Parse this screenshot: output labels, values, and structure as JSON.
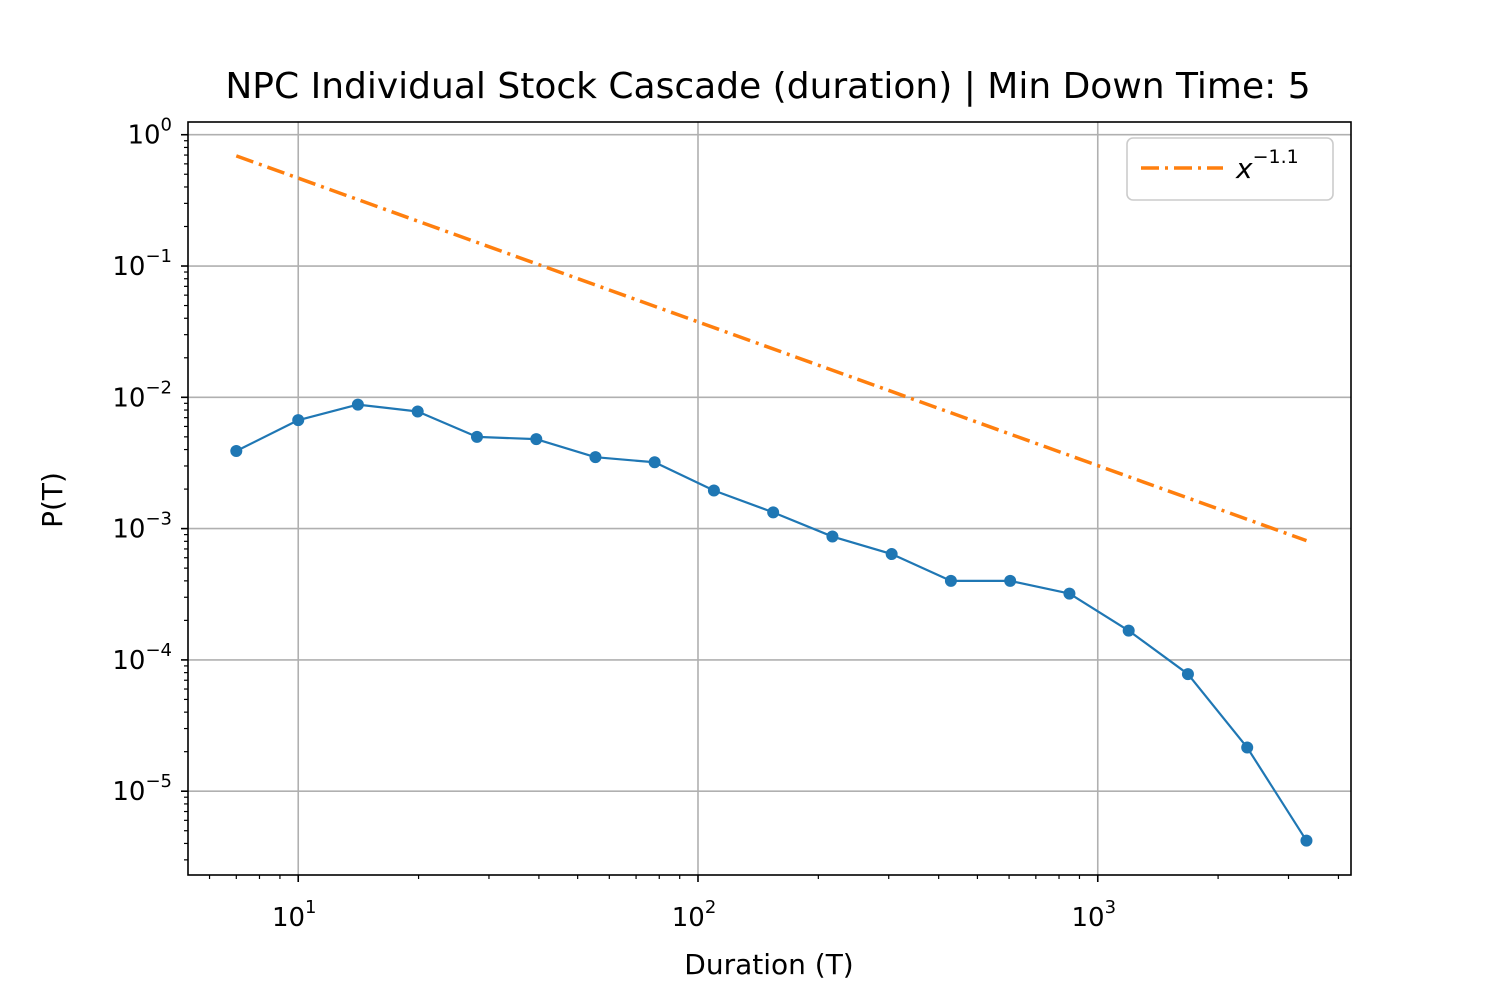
{
  "chart_data": {
    "type": "line",
    "title": "NPC Individual Stock Cascade (duration) | Min Down Time: 5",
    "xlabel": "Duration (T)",
    "ylabel": "P(T)",
    "xscale": "log",
    "yscale": "log",
    "xlim": [
      5.3,
      4300
    ],
    "ylim": [
      2.3e-06,
      1.25
    ],
    "grid": true,
    "x_ticks": [
      {
        "value": 10,
        "base": "10",
        "exp": "1"
      },
      {
        "value": 100,
        "base": "10",
        "exp": "2"
      },
      {
        "value": 1000,
        "base": "10",
        "exp": "3"
      }
    ],
    "y_ticks": [
      {
        "value": 1,
        "base": "10",
        "exp": "0"
      },
      {
        "value": 0.1,
        "base": "10",
        "exp": "−1"
      },
      {
        "value": 0.01,
        "base": "10",
        "exp": "−2"
      },
      {
        "value": 0.001,
        "base": "10",
        "exp": "−3"
      },
      {
        "value": 0.0001,
        "base": "10",
        "exp": "−4"
      },
      {
        "value": 1e-05,
        "base": "10",
        "exp": "−5"
      }
    ],
    "legend": {
      "placement": "top-right",
      "entries": [
        {
          "base": "x",
          "exp": "−1.1",
          "color": "#ff7f0e",
          "style": "dashdot"
        }
      ]
    },
    "series": [
      {
        "color": "#1f77b4",
        "marker": "circle",
        "x": [
          7,
          10,
          14.1,
          19.9,
          28,
          39.4,
          55.4,
          77.9,
          109.6,
          154.2,
          216.9,
          305.1,
          429.2,
          603.8,
          849.5,
          1195,
          1681,
          2365,
          3327
        ],
        "y": [
          0.0039,
          0.0067,
          0.0088,
          0.0078,
          0.005,
          0.0048,
          0.0035,
          0.0032,
          0.00195,
          0.00133,
          0.00087,
          0.00064,
          0.0004,
          0.0004,
          0.00032,
          0.000167,
          7.8e-05,
          2.15e-05,
          4.2e-06
        ]
      },
      {
        "color": "#ff7f0e",
        "style": "dashdot",
        "x": [
          7,
          3327
        ],
        "y": [
          0.69,
          0.00081
        ]
      }
    ]
  }
}
